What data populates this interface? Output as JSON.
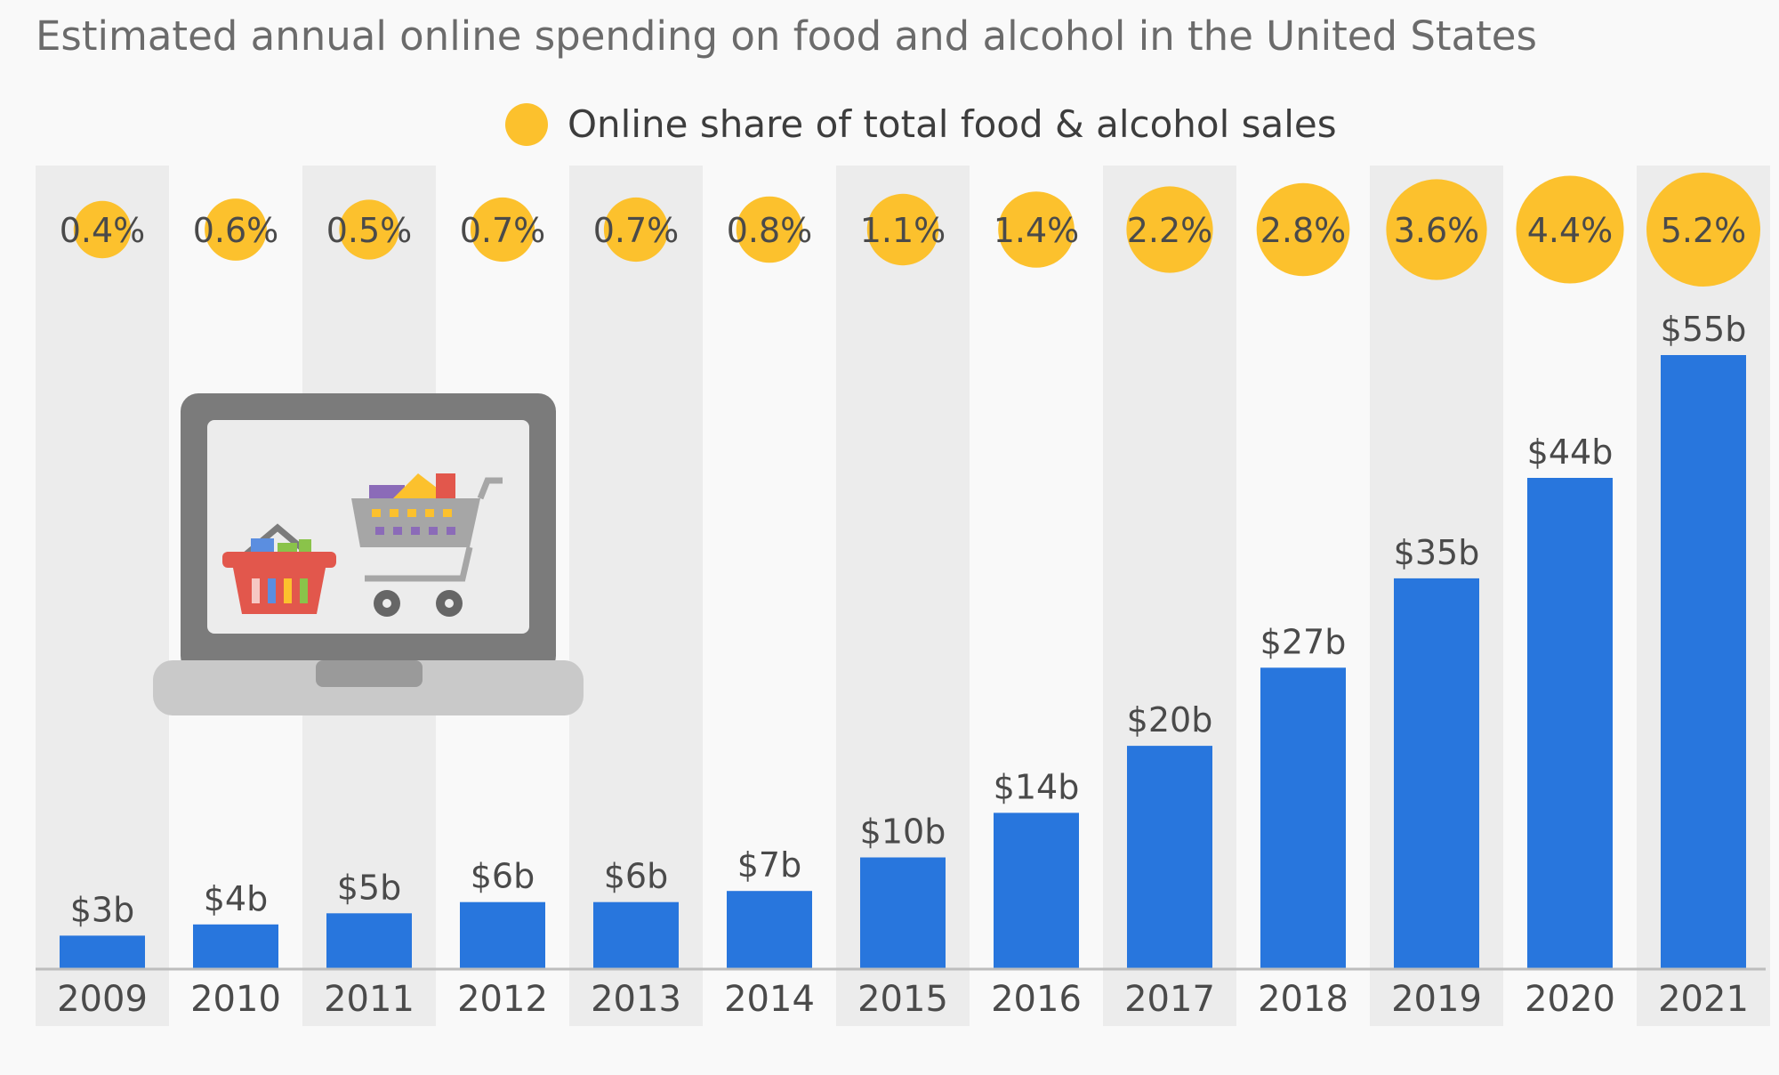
{
  "chart_data": {
    "type": "bar",
    "subtitle": "Estimated annual online spending on food and alcohol in the United States",
    "legend": "Online share of total food & alcohol sales",
    "categories": [
      "2009",
      "2010",
      "2011",
      "2012",
      "2013",
      "2014",
      "2015",
      "2016",
      "2017",
      "2018",
      "2019",
      "2020",
      "2021"
    ],
    "values": [
      3,
      4,
      5,
      6,
      6,
      7,
      10,
      14,
      20,
      27,
      35,
      44,
      55
    ],
    "value_labels": [
      "$3b",
      "$4b",
      "$5b",
      "$6b",
      "$6b",
      "$7b",
      "$10b",
      "$14b",
      "$20b",
      "$27b",
      "$35b",
      "$44b",
      "$55b"
    ],
    "share_values": [
      0.4,
      0.6,
      0.5,
      0.7,
      0.7,
      0.8,
      1.1,
      1.4,
      2.2,
      2.8,
      3.6,
      4.4,
      5.2
    ],
    "share_labels": [
      "0.4%",
      "0.6%",
      "0.5%",
      "0.7%",
      "0.7%",
      "0.8%",
      "1.1%",
      "1.4%",
      "2.2%",
      "2.8%",
      "3.6%",
      "4.4%",
      "5.2%"
    ],
    "ylim": [
      0,
      55
    ],
    "xlabel": "",
    "ylabel": "",
    "colors": {
      "bar": "#2876dd",
      "bubble": "#fcc12d",
      "band": "#ececec",
      "text": "#4a4a4a"
    }
  },
  "illustration": {
    "name": "laptop-with-shopping-cart-and-basket",
    "colors": {
      "laptop_frame": "#7b7b7b",
      "laptop_base": "#c9c9c9",
      "screen": "#ececec",
      "basket": "#e2574c",
      "cart": "#a6a6a6"
    }
  }
}
